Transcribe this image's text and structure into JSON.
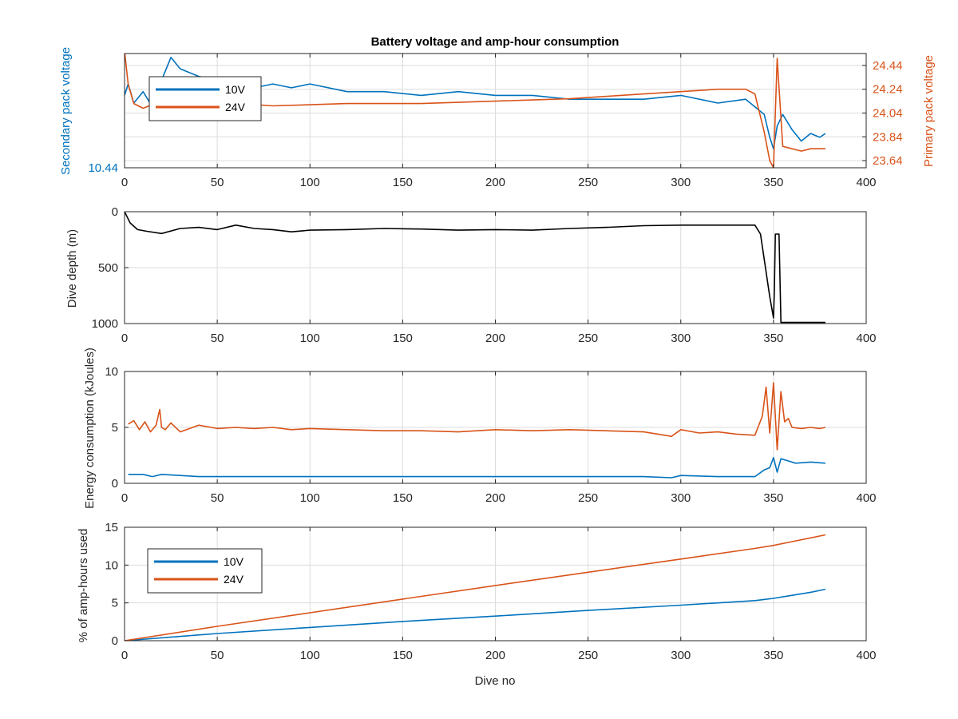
{
  "chart_data": [
    {
      "type": "line",
      "title": "Battery voltage and amp-hour consumption",
      "xlabel": "",
      "ylabel": "Secondary pack voltage",
      "ylabel_right": "Primary pack voltage",
      "xlim": [
        0,
        400
      ],
      "xticks": [
        0,
        50,
        100,
        150,
        200,
        250,
        300,
        350,
        400
      ],
      "ylim": [
        10.44,
        10.74
      ],
      "yticks_left": [
        10.44
      ],
      "ylim_right": [
        23.58,
        24.54
      ],
      "yticks_right": [
        23.64,
        23.84,
        24.04,
        24.24,
        24.44
      ],
      "grid": true,
      "legend": {
        "placement": "top-left",
        "entries": [
          "10V",
          "24V"
        ]
      },
      "series": [
        {
          "name": "10V",
          "axis": "left",
          "color": "#0072BD",
          "x": [
            0,
            2,
            5,
            10,
            15,
            20,
            25,
            30,
            40,
            50,
            60,
            70,
            80,
            90,
            100,
            120,
            140,
            160,
            180,
            200,
            220,
            240,
            260,
            280,
            300,
            320,
            335,
            340,
            345,
            348,
            350,
            352,
            355,
            360,
            365,
            370,
            375,
            378
          ],
          "y": [
            10.63,
            10.66,
            10.61,
            10.64,
            10.6,
            10.67,
            10.73,
            10.7,
            10.68,
            10.67,
            10.66,
            10.65,
            10.66,
            10.65,
            10.66,
            10.64,
            10.64,
            10.63,
            10.64,
            10.63,
            10.63,
            10.62,
            10.62,
            10.62,
            10.63,
            10.61,
            10.62,
            10.6,
            10.58,
            10.52,
            10.49,
            10.55,
            10.58,
            10.54,
            10.51,
            10.53,
            10.52,
            10.53
          ]
        },
        {
          "name": "24V",
          "axis": "right",
          "color": "#D95319",
          "x": [
            0,
            2,
            5,
            10,
            20,
            30,
            40,
            50,
            60,
            80,
            100,
            120,
            140,
            160,
            180,
            200,
            220,
            240,
            260,
            280,
            300,
            320,
            335,
            340,
            345,
            348,
            350,
            352,
            355,
            360,
            365,
            370,
            375,
            378
          ],
          "y": [
            24.56,
            24.28,
            24.12,
            24.08,
            24.14,
            24.1,
            24.12,
            24.11,
            24.12,
            24.1,
            24.11,
            24.12,
            24.12,
            24.12,
            24.13,
            24.14,
            24.15,
            24.16,
            24.18,
            24.2,
            24.22,
            24.24,
            24.24,
            24.2,
            23.88,
            23.64,
            23.58,
            24.5,
            23.76,
            23.74,
            23.72,
            23.74,
            23.74,
            23.74
          ]
        }
      ]
    },
    {
      "type": "line",
      "title": "",
      "xlabel": "",
      "ylabel": "Dive depth (m)",
      "xlim": [
        0,
        400
      ],
      "xticks": [
        0,
        50,
        100,
        150,
        200,
        250,
        300,
        350,
        400
      ],
      "ylim": [
        0,
        1000
      ],
      "yticks": [
        0,
        500,
        1000
      ],
      "y_reversed": true,
      "grid": true,
      "series": [
        {
          "name": "",
          "color": "#000000",
          "x": [
            0,
            3,
            7,
            12,
            20,
            30,
            40,
            50,
            60,
            70,
            80,
            90,
            100,
            120,
            140,
            160,
            180,
            200,
            220,
            240,
            260,
            280,
            300,
            320,
            340,
            343,
            348,
            350,
            350.5,
            351,
            353,
            354,
            356,
            360,
            370,
            378
          ],
          "y": [
            0,
            100,
            160,
            175,
            195,
            150,
            140,
            160,
            120,
            150,
            160,
            180,
            165,
            160,
            150,
            155,
            165,
            160,
            165,
            150,
            140,
            125,
            120,
            120,
            120,
            200,
            760,
            950,
            700,
            200,
            200,
            990,
            990,
            990,
            990,
            990
          ]
        }
      ]
    },
    {
      "type": "line",
      "title": "",
      "xlabel": "",
      "ylabel": "Energy consumption (kJoules)",
      "xlim": [
        0,
        400
      ],
      "xticks": [
        0,
        50,
        100,
        150,
        200,
        250,
        300,
        350,
        400
      ],
      "ylim": [
        0,
        10
      ],
      "yticks": [
        0,
        5,
        10
      ],
      "grid": true,
      "series": [
        {
          "name": "",
          "color": "#D95319",
          "x": [
            2,
            5,
            8,
            11,
            14,
            17,
            19,
            20,
            22,
            25,
            30,
            40,
            50,
            60,
            70,
            80,
            90,
            100,
            120,
            140,
            160,
            180,
            200,
            220,
            240,
            260,
            280,
            295,
            300,
            310,
            320,
            330,
            340,
            344,
            346,
            348,
            350,
            352,
            354,
            356,
            358,
            360,
            365,
            370,
            375,
            378
          ],
          "y": [
            5.3,
            5.6,
            4.8,
            5.5,
            4.6,
            5.2,
            6.6,
            5.0,
            4.8,
            5.4,
            4.6,
            5.2,
            4.9,
            5.0,
            4.9,
            5.0,
            4.8,
            4.9,
            4.8,
            4.7,
            4.7,
            4.6,
            4.8,
            4.7,
            4.8,
            4.7,
            4.6,
            4.2,
            4.8,
            4.5,
            4.6,
            4.4,
            4.3,
            6.0,
            8.6,
            4.5,
            9.0,
            3.0,
            8.2,
            5.5,
            5.8,
            5.0,
            4.9,
            5.0,
            4.9,
            5.0
          ]
        },
        {
          "name": "",
          "color": "#0072BD",
          "x": [
            2,
            10,
            15,
            20,
            40,
            60,
            80,
            100,
            120,
            140,
            160,
            180,
            200,
            220,
            240,
            260,
            280,
            295,
            300,
            320,
            340,
            345,
            348,
            350,
            352,
            354,
            358,
            362,
            370,
            378
          ],
          "y": [
            0.8,
            0.8,
            0.6,
            0.8,
            0.6,
            0.6,
            0.6,
            0.6,
            0.6,
            0.6,
            0.6,
            0.6,
            0.6,
            0.6,
            0.6,
            0.6,
            0.6,
            0.5,
            0.7,
            0.6,
            0.6,
            1.2,
            1.4,
            2.3,
            1.0,
            2.2,
            2.0,
            1.8,
            1.9,
            1.8
          ]
        }
      ]
    },
    {
      "type": "line",
      "title": "",
      "xlabel": "Dive no",
      "ylabel": "% of amp-hours used",
      "xlim": [
        0,
        400
      ],
      "xticks": [
        0,
        50,
        100,
        150,
        200,
        250,
        300,
        350,
        400
      ],
      "ylim": [
        0,
        15
      ],
      "yticks": [
        0,
        5,
        10,
        15
      ],
      "grid": true,
      "legend": {
        "placement": "top-left",
        "entries": [
          "10V",
          "24V"
        ]
      },
      "series": [
        {
          "name": "10V",
          "color": "#0072BD",
          "x": [
            0,
            50,
            100,
            150,
            200,
            250,
            300,
            340,
            350,
            360,
            370,
            378
          ],
          "y": [
            0,
            0.95,
            1.75,
            2.55,
            3.25,
            4.0,
            4.7,
            5.3,
            5.6,
            6.0,
            6.4,
            6.8
          ]
        },
        {
          "name": "24V",
          "color": "#D95319",
          "x": [
            0,
            50,
            100,
            150,
            200,
            250,
            300,
            340,
            350,
            360,
            370,
            378
          ],
          "y": [
            0,
            1.9,
            3.7,
            5.5,
            7.3,
            9.05,
            10.8,
            12.2,
            12.6,
            13.1,
            13.6,
            14.0
          ]
        }
      ]
    }
  ]
}
